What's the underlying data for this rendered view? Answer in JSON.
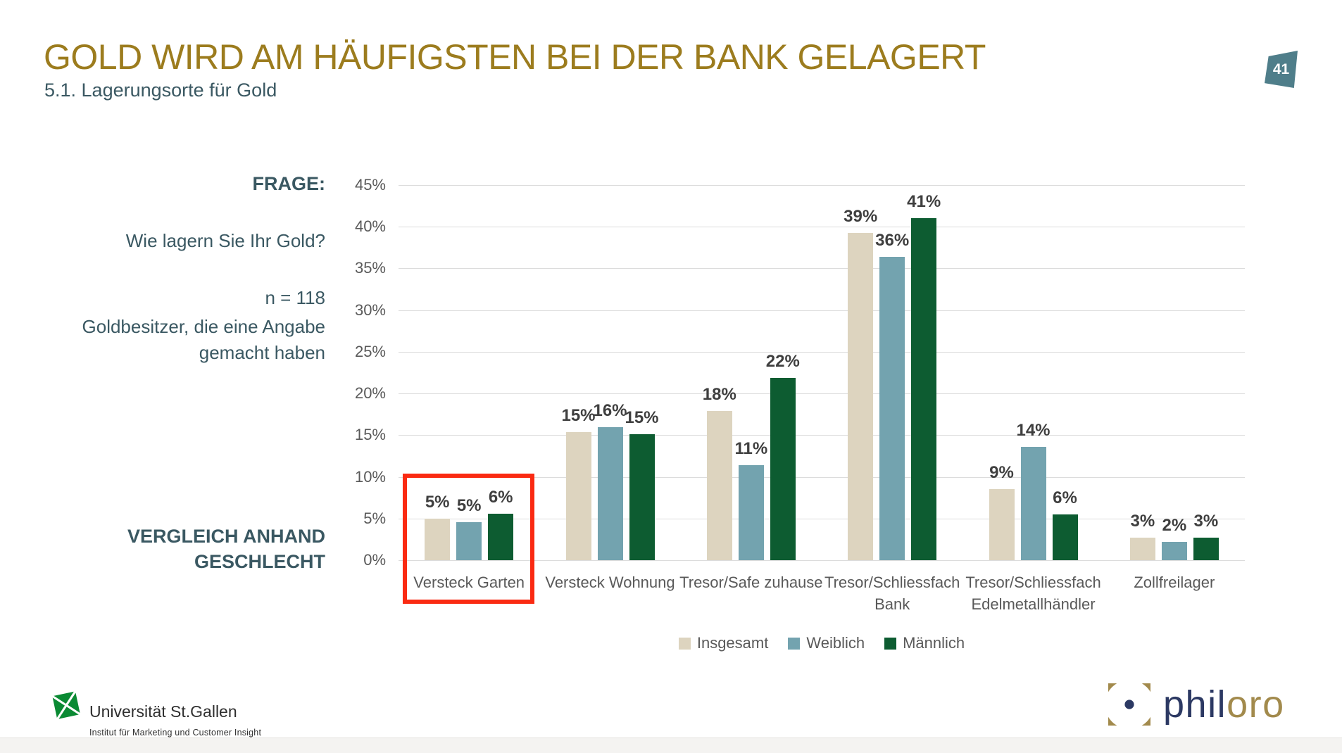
{
  "slide": {
    "title": "GOLD WIRD AM HÄUFIGSTEN BEI DER BANK GELAGERT",
    "subtitle": "5.1. Lagerungsorte für Gold",
    "page_number": "41"
  },
  "sidebar": {
    "frage_label": "FRAGE:",
    "question": "Wie lagern Sie Ihr Gold?",
    "sample_n": "n = 118",
    "sample_desc": "Goldbesitzer, die eine Angabe gemacht haben",
    "comparison_line1": "VERGLEICH ANHAND",
    "comparison_line2": "GESCHLECHT"
  },
  "chart_data": {
    "type": "bar",
    "title": "",
    "xlabel": "",
    "ylabel": "",
    "categories": [
      "Versteck Garten",
      "Versteck Wohnung",
      "Tresor/Safe zuhause",
      "Tresor/Schliessfach Bank",
      "Tresor/Schliessfach Edelmetallhändler",
      "Zollfreilager"
    ],
    "category_lines": [
      [
        "Versteck Garten"
      ],
      [
        "Versteck Wohnung"
      ],
      [
        "Tresor/Safe zuhause"
      ],
      [
        "Tresor/Schliessfach",
        "Bank"
      ],
      [
        "Tresor/Schliessfach",
        "Edelmetallhändler"
      ],
      [
        "Zollfreilager"
      ]
    ],
    "series": [
      {
        "name": "Insgesamt",
        "color": "#ddd4bf",
        "values": [
          5,
          15,
          18,
          39,
          9,
          3
        ],
        "values_exact": [
          5.0,
          15.4,
          17.9,
          39.3,
          8.5,
          2.7
        ]
      },
      {
        "name": "Weiblich",
        "color": "#73a3af",
        "values": [
          5,
          16,
          11,
          36,
          14,
          2
        ],
        "values_exact": [
          4.6,
          16.0,
          11.4,
          36.4,
          13.6,
          2.2
        ]
      },
      {
        "name": "Männlich",
        "color": "#0d5c31",
        "values": [
          6,
          15,
          22,
          41,
          6,
          3
        ],
        "values_exact": [
          5.6,
          15.1,
          21.9,
          41.0,
          5.5,
          2.7
        ]
      }
    ],
    "value_suffix": "%",
    "y_ticks": [
      {
        "v": 45,
        "label": "45%"
      },
      {
        "v": 40,
        "label": "40%"
      },
      {
        "v": 35,
        "label": "35%"
      },
      {
        "v": 30,
        "label": "30%"
      },
      {
        "v": 25,
        "label": "25%"
      },
      {
        "v": 20,
        "label": "20%"
      },
      {
        "v": 15,
        "label": "15%"
      },
      {
        "v": 10,
        "label": "10%"
      },
      {
        "v": 5,
        "label": "5%"
      },
      {
        "v": 0,
        "label": "0%"
      }
    ],
    "ylim": [
      0,
      45
    ],
    "grid": true,
    "legend": [
      "Insgesamt",
      "Weiblich",
      "Männlich"
    ],
    "legend_position": "bottom",
    "highlight": {
      "category_index": 0,
      "category": "Versteck Garten",
      "color": "#fa2a12"
    }
  },
  "footer": {
    "university": {
      "name": "Universität St.Gallen",
      "institute": "Institut für Marketing und Customer Insight"
    },
    "philoro": {
      "part1": "phil",
      "part2": "oro"
    }
  },
  "colors": {
    "title_gold": "#9c7c1e",
    "teal_text": "#3a5862",
    "badge_teal": "#4f7e8a",
    "gridline": "#dcdcdc",
    "tick_text": "#595959",
    "value_text": "#3f3f3f",
    "highlight_red": "#fa2a12",
    "hsg_green": "#0a8a33",
    "philoro_navy": "#2c3963",
    "philoro_gold": "#a28a4c"
  }
}
